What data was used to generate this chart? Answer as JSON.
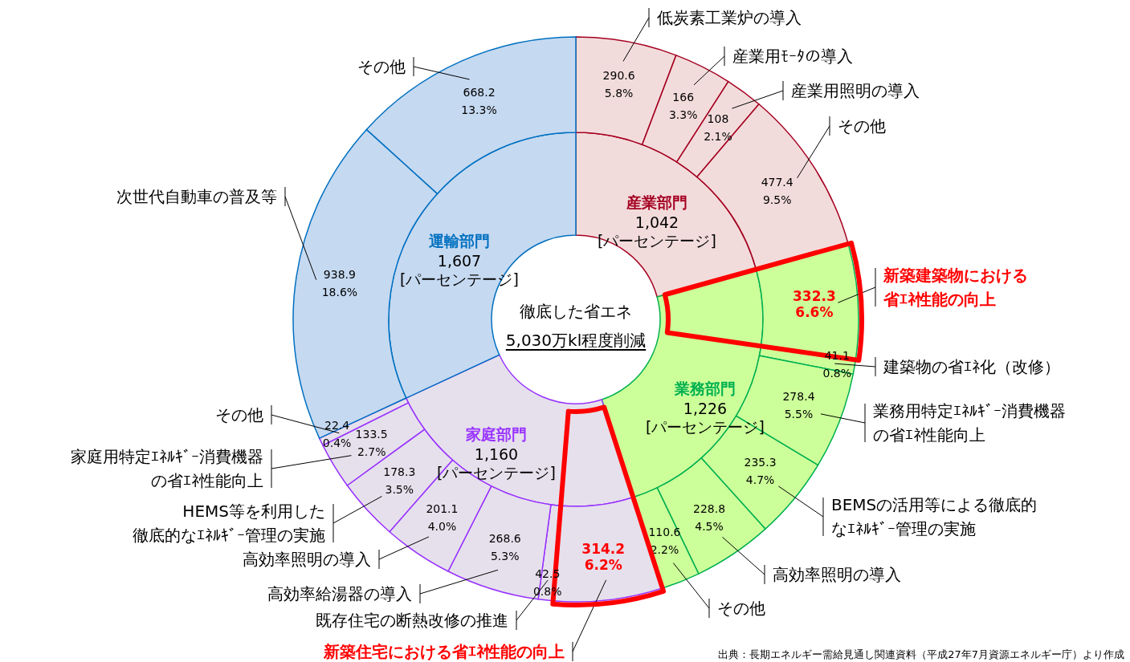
{
  "chart_data": [
    {
      "type": "donut",
      "title": "徹底した省エネ",
      "subtitle": "5,030万kl程度削減",
      "categories": [
        "産業部門",
        "業務部門",
        "家庭部門",
        "運輸部門"
      ],
      "values": [
        1042,
        1226,
        1160,
        1607
      ],
      "value_labels": [
        "1,042\n[パーセンテージ]",
        "1,226\n[パーセンテージ]",
        "1,160\n[パーセンテージ]",
        "1,607\n[パーセンテージ]"
      ],
      "colors": [
        "#f2dcdb",
        "#ccff99",
        "#e6e0ec",
        "#c5d9f1"
      ]
    },
    {
      "type": "donut",
      "categories": [
        "低炭素工業炉の導入",
        "産業用ﾓｰﾀの導入",
        "産業用照明の導入",
        "その他",
        "新築建築物における省ｴﾈ性能の向上",
        "建築物の省ｴﾈ化（改修）",
        "業務用特定ｴﾈﾙｷﾞｰ消費機器の省ｴﾈ性能向上",
        "BEMSの活用等による徹底的なｴﾈﾙｷﾞｰ管理の実施",
        "高効率照明の導入",
        "その他",
        "新築住宅における省ｴﾈ性能の向上",
        "既存住宅の断熱改修の推進",
        "高効率給湯器の導入",
        "高効率照明の導入",
        "HEMS等を利用した徹底的なｴﾈﾙｷﾞｰ管理の実施",
        "家庭用特定ｴﾈﾙｷﾞｰ消費機器の省ｴﾈ性能向上",
        "その他",
        "次世代自動車の普及等",
        "その他"
      ],
      "values": [
        290.6,
        166,
        108,
        477.4,
        332.3,
        41.1,
        278.4,
        235.3,
        228.8,
        110.6,
        314.2,
        42.5,
        268.6,
        201.1,
        178.3,
        133.5,
        22.4,
        938.9,
        668.2
      ],
      "value_labels": [
        "290.6\n5.8%",
        "166\n3.3%",
        "108\n2.1%",
        "477.4\n9.5%",
        "332.3\n6.6%",
        "41.1\n0.8%",
        "278.4\n5.5%",
        "235.3\n4.7%",
        "228.8\n4.5%",
        "110.6\n2.2%",
        "314.2\n6.2%",
        "42.5\n0.8%",
        "268.6\n5.3%",
        "201.1\n4.0%",
        "178.3\n3.5%",
        "133.5\n2.7%",
        "22.4\n0.4%",
        "938.9\n18.6%",
        "668.2\n13.3%"
      ],
      "colors": [
        "#f2dcdb",
        "#f2dcdb",
        "#f2dcdb",
        "#f2dcdb",
        "#ccff99",
        "#ccff99",
        "#ccff99",
        "#ccff99",
        "#ccff99",
        "#ccff99",
        "#e6e0ec",
        "#e6e0ec",
        "#e6e0ec",
        "#e6e0ec",
        "#e6e0ec",
        "#e6e0ec",
        "#e6e0ec",
        "#c5d9f1",
        "#c5d9f1"
      ],
      "annotations": [
        "出典：長期エネルギー需給見通し関連資料（平成27年7月資源エネルギー庁）より作成"
      ]
    }
  ]
}
